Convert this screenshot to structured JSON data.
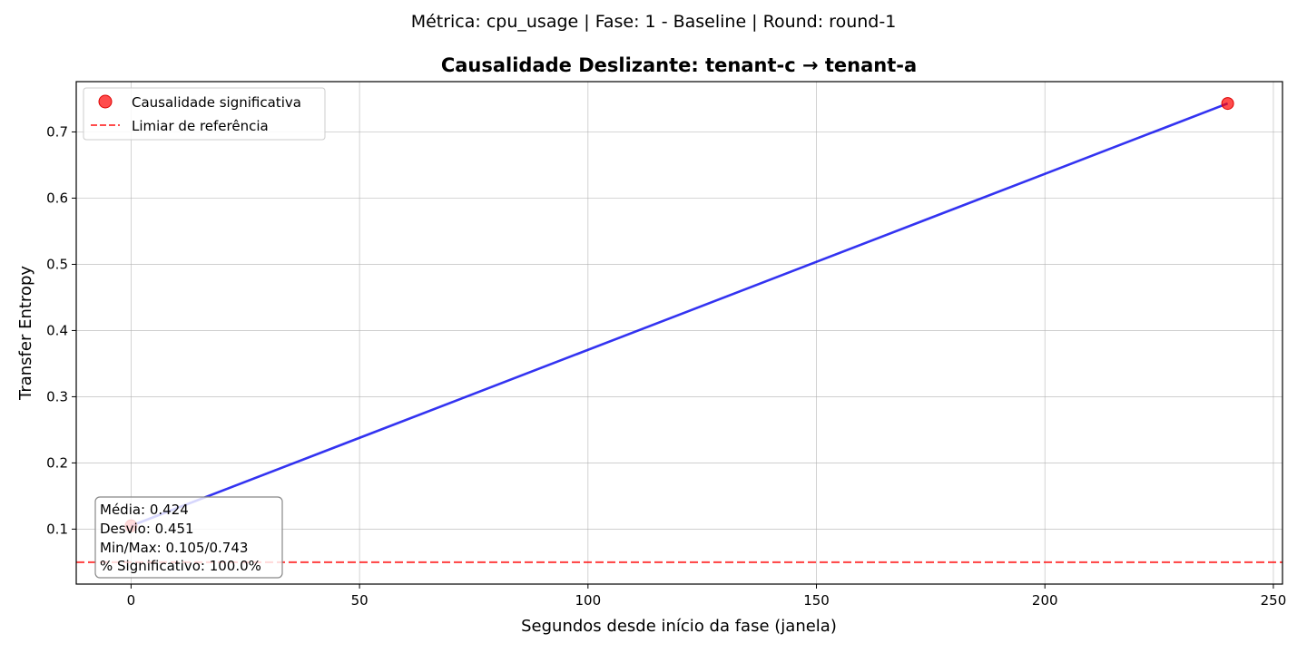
{
  "figure": {
    "suptitle": "Métrica: cpu_usage | Fase: 1 - Baseline | Round: round-1"
  },
  "chart_data": {
    "type": "line",
    "title": "Causalidade Deslizante: tenant-c → tenant-a",
    "xlabel": "Segundos desde início da fase (janela)",
    "ylabel": "Transfer Entropy",
    "xlim": [
      -12,
      252
    ],
    "ylim": [
      0.017,
      0.776
    ],
    "xticks": [
      0,
      50,
      100,
      150,
      200,
      250
    ],
    "yticks": [
      0.1,
      0.2,
      0.3,
      0.4,
      0.5,
      0.6,
      0.7
    ],
    "grid": true,
    "legend_position": "upper-left",
    "series": [
      {
        "x": [
          0,
          240
        ],
        "y": [
          0.105,
          0.743
        ],
        "color": "#0000ee",
        "style": "solid"
      }
    ],
    "significant_points": {
      "name": "Causalidade significativa",
      "x": [
        0,
        240
      ],
      "y": [
        0.105,
        0.743
      ],
      "color": "#ff0000"
    },
    "reference_line": {
      "name": "Limiar de referência",
      "y": 0.05,
      "color": "#ff0000",
      "style": "dashed"
    },
    "legend": [
      {
        "label": "Causalidade significativa",
        "kind": "marker",
        "color": "#ff0000"
      },
      {
        "label": "Limiar de referência",
        "kind": "dashed-line",
        "color": "#ff0000"
      }
    ],
    "stats_box": {
      "lines": [
        "Média: 0.424",
        "Desvio: 0.451",
        "Min/Max: 0.105/0.743",
        "% Significativo: 100.0%"
      ]
    }
  }
}
